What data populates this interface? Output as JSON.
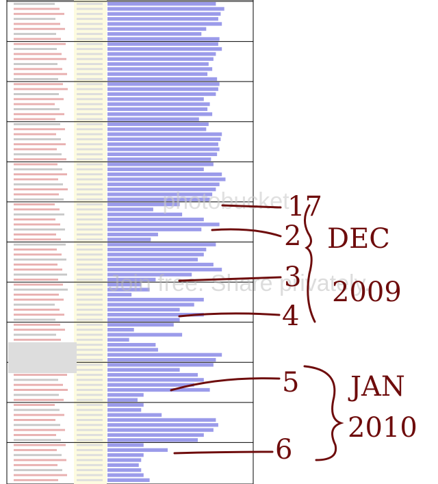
{
  "chart_data": {
    "type": "bar",
    "orientation": "horizontal",
    "color": "#9b9bea",
    "values": [
      90,
      97,
      94,
      92,
      95,
      82,
      78,
      93,
      92,
      95,
      90,
      88,
      84,
      87,
      83,
      91,
      93,
      92,
      90,
      80,
      85,
      83,
      87,
      76,
      84,
      82,
      95,
      94,
      92,
      93,
      91,
      86,
      88,
      80,
      95,
      98,
      93,
      90,
      87,
      85,
      60,
      38,
      62,
      80,
      93,
      78,
      42,
      36,
      90,
      82,
      80,
      75,
      88,
      95,
      70,
      40,
      28,
      35,
      20,
      80,
      72,
      60,
      80,
      60,
      55,
      22,
      62,
      18,
      40,
      42,
      95,
      90,
      88,
      60,
      75,
      80,
      72,
      85,
      30,
      25,
      30,
      28,
      45,
      90,
      92,
      88,
      80,
      75,
      30,
      50,
      30,
      28,
      26,
      28,
      30,
      35
    ],
    "xlim": [
      0,
      100
    ],
    "annotations": [
      "17",
      "2",
      "3",
      "4",
      "5",
      "6"
    ],
    "brackets": [
      "DEC",
      "2009",
      "JAN",
      "2010"
    ],
    "watermarks": [
      "photobucket",
      "Join free. Share privately."
    ]
  }
}
